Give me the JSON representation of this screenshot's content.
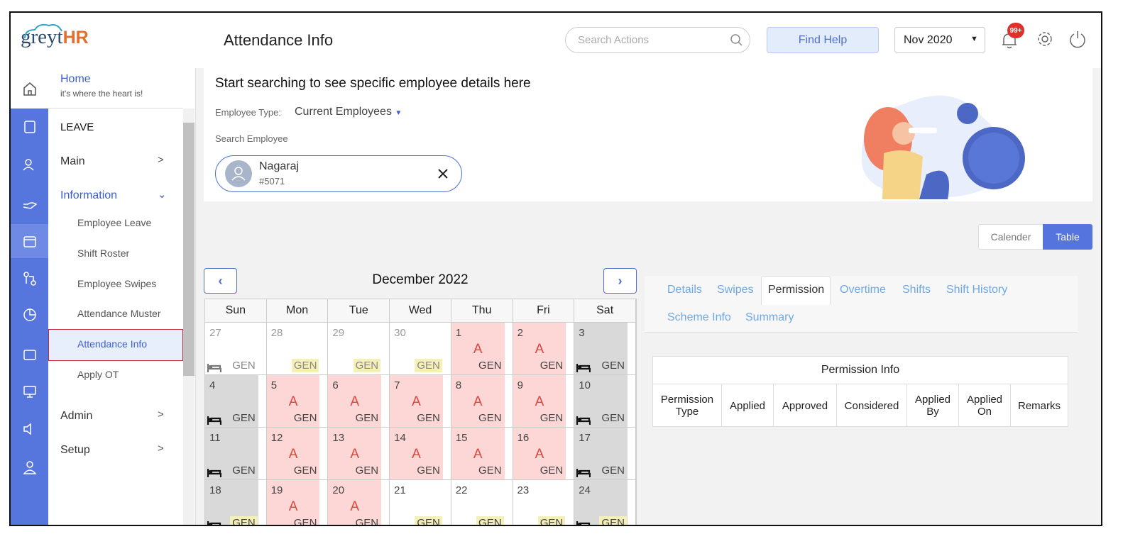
{
  "header": {
    "logo": {
      "prefix": "greyt",
      "suffix": "HR"
    },
    "title": "Attendance Info",
    "search_placeholder": "Search Actions",
    "help_button": "Find Help",
    "period": "Nov 2020",
    "notification_count": "99+"
  },
  "sidebar": {
    "home": {
      "label": "Home",
      "subtitle": "it's where the heart is!"
    },
    "section": "LEAVE",
    "main": "Main",
    "information": {
      "label": "Information",
      "items": [
        "Employee Leave",
        "Shift Roster",
        "Employee Swipes",
        "Attendance Muster",
        "Attendance Info",
        "Apply OT"
      ]
    },
    "admin": "Admin",
    "setup": "Setup"
  },
  "search_card": {
    "title": "Start searching to see specific employee details here",
    "employee_type_label": "Employee Type:",
    "employee_type": "Current Employees",
    "search_label": "Search Employee",
    "employee": {
      "name": "Nagaraj",
      "id": "#5071"
    }
  },
  "view_toggle": [
    "Calender",
    "Table"
  ],
  "calendar": {
    "title": "December 2022",
    "weekdays": [
      "Sun",
      "Mon",
      "Tue",
      "Wed",
      "Thu",
      "Fri",
      "Sat"
    ],
    "weeks": [
      [
        {
          "day": 27,
          "shift": "GEN"
        },
        {
          "day": 28,
          "shift": "GEN"
        },
        {
          "day": 29,
          "shift": "GEN"
        },
        {
          "day": 30,
          "shift": "GEN"
        },
        {
          "day": 1,
          "status": "A",
          "shift": "GEN"
        },
        {
          "day": 2,
          "status": "A",
          "shift": "GEN"
        },
        {
          "day": 3,
          "shift": "GEN"
        }
      ],
      [
        {
          "day": 4,
          "shift": "GEN"
        },
        {
          "day": 5,
          "status": "A",
          "shift": "GEN"
        },
        {
          "day": 6,
          "status": "A",
          "shift": "GEN"
        },
        {
          "day": 7,
          "status": "A",
          "shift": "GEN"
        },
        {
          "day": 8,
          "status": "A",
          "shift": "GEN"
        },
        {
          "day": 9,
          "status": "A",
          "shift": "GEN"
        },
        {
          "day": 10,
          "shift": "GEN"
        }
      ],
      [
        {
          "day": 11,
          "shift": "GEN"
        },
        {
          "day": 12,
          "status": "A",
          "shift": "GEN"
        },
        {
          "day": 13,
          "status": "A",
          "shift": "GEN"
        },
        {
          "day": 14,
          "status": "A",
          "shift": "GEN"
        },
        {
          "day": 15,
          "status": "A",
          "shift": "GEN"
        },
        {
          "day": 16,
          "status": "A",
          "shift": "GEN"
        },
        {
          "day": 17,
          "shift": "GEN"
        }
      ],
      [
        {
          "day": 18,
          "shift": "GEN"
        },
        {
          "day": 19,
          "status": "A",
          "shift": "GEN"
        },
        {
          "day": 20,
          "status": "A",
          "shift": "GEN"
        },
        {
          "day": 21,
          "shift": "GEN"
        },
        {
          "day": 22,
          "shift": "GEN"
        },
        {
          "day": 23,
          "shift": "GEN"
        },
        {
          "day": 24,
          "shift": "GEN"
        }
      ]
    ]
  },
  "tabs": [
    "Details",
    "Swipes",
    "Permission",
    "Overtime",
    "Shifts",
    "Shift History",
    "Scheme Info",
    "Summary"
  ],
  "permission_table": {
    "title": "Permission Info",
    "columns": [
      "Permission Type",
      "Applied",
      "Approved",
      "Considered",
      "Applied By",
      "Applied On",
      "Remarks"
    ]
  }
}
